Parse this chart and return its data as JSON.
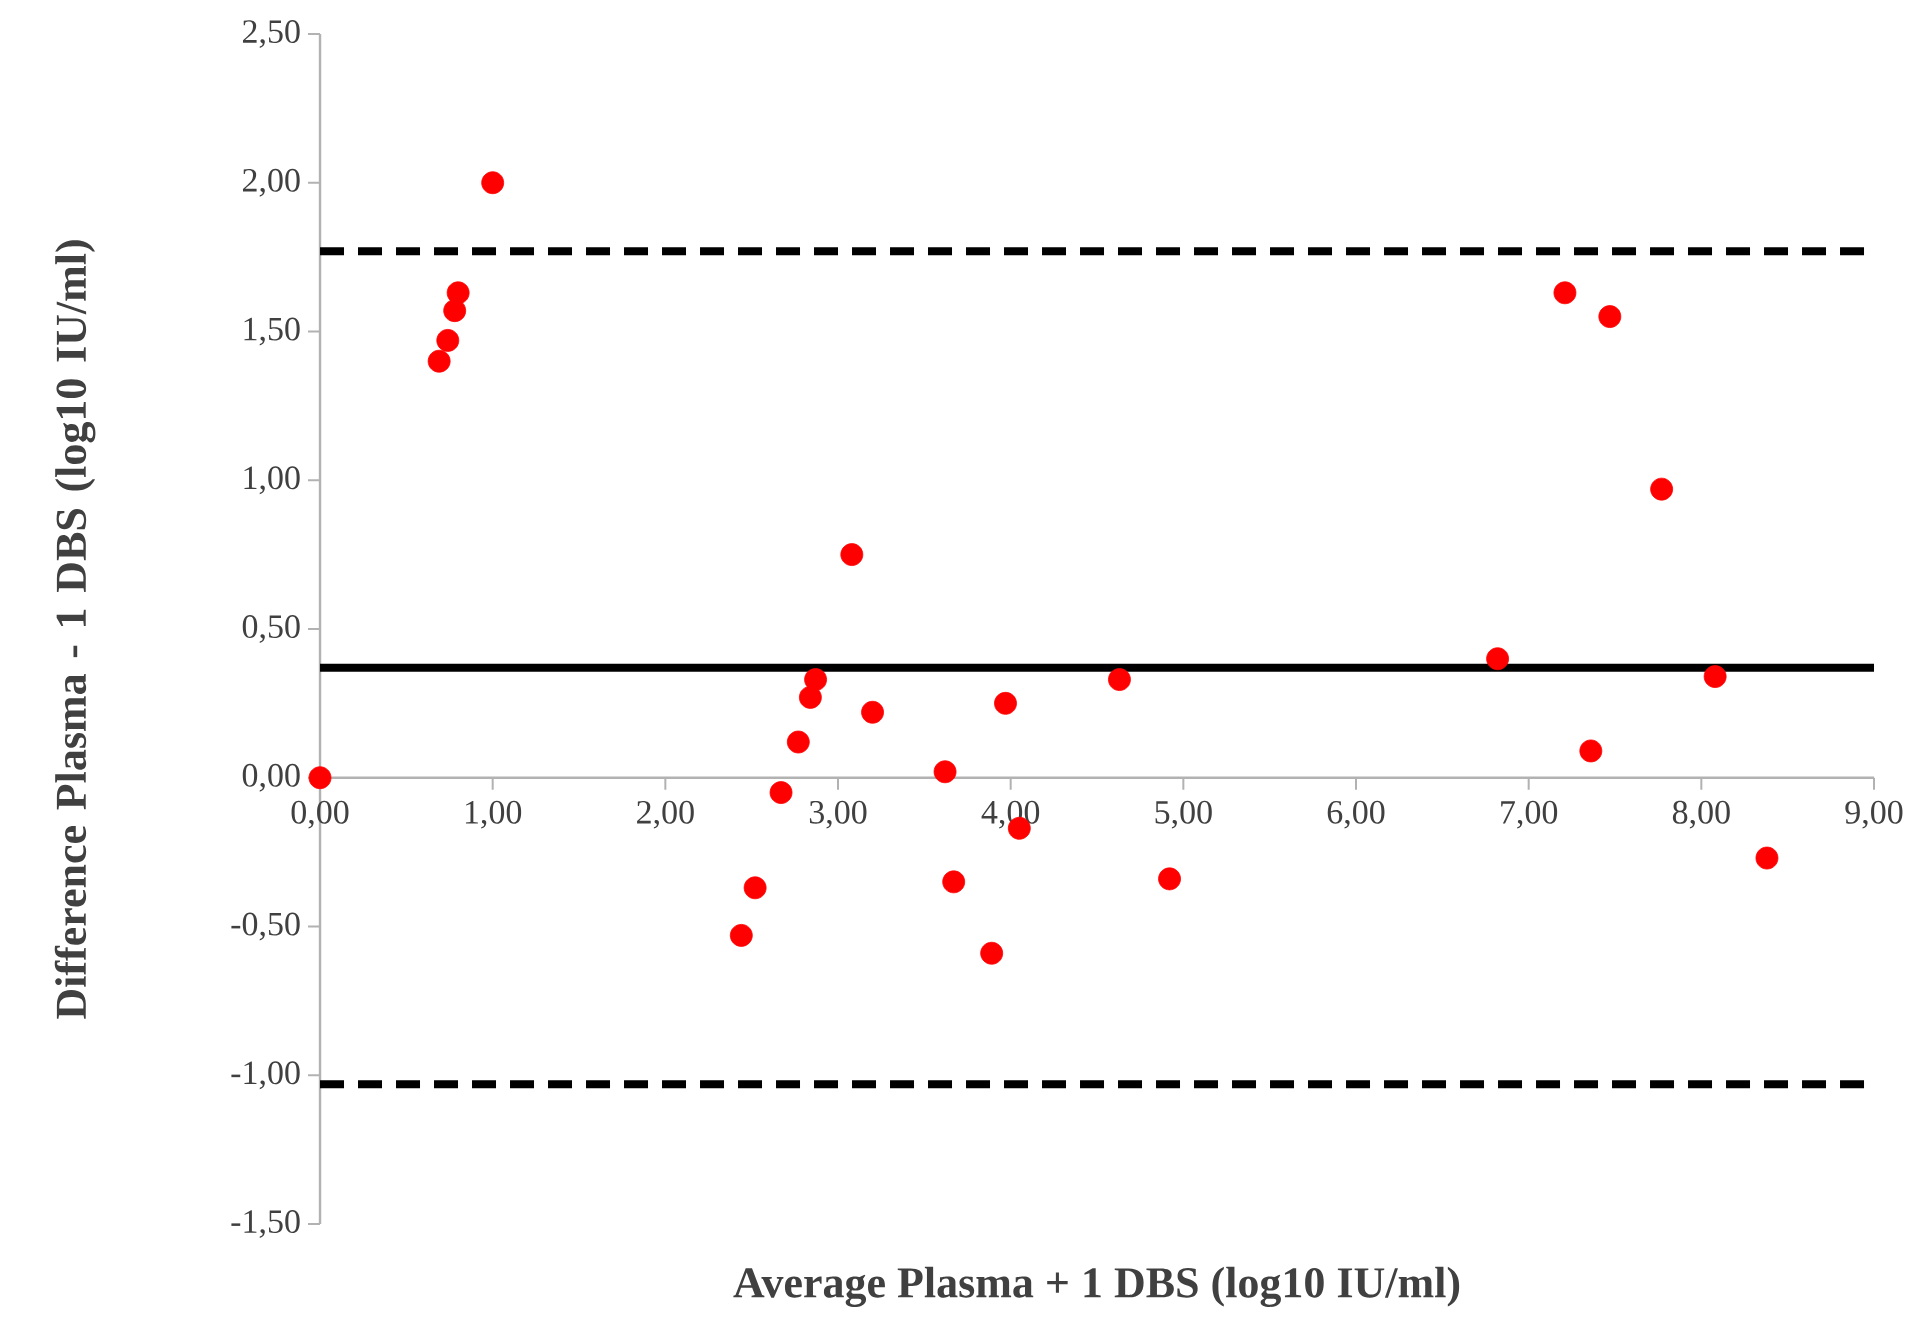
{
  "chart_data": {
    "type": "scatter",
    "xlabel": "Average Plasma + 1 DBS (log10 IU/ml)",
    "ylabel": "Difference Plasma - 1 DBS (log10 IU/ml)",
    "xlim": [
      0,
      9
    ],
    "ylim": [
      -1.5,
      2.5
    ],
    "xticks": [
      {
        "value": 0,
        "label": "0,00"
      },
      {
        "value": 1,
        "label": "1,00"
      },
      {
        "value": 2,
        "label": "2,00"
      },
      {
        "value": 3,
        "label": "3,00"
      },
      {
        "value": 4,
        "label": "4,00"
      },
      {
        "value": 5,
        "label": "5,00"
      },
      {
        "value": 6,
        "label": "6,00"
      },
      {
        "value": 7,
        "label": "7,00"
      },
      {
        "value": 8,
        "label": "8,00"
      },
      {
        "value": 9,
        "label": "9,00"
      }
    ],
    "yticks": [
      {
        "value": -1.5,
        "label": "-1,50"
      },
      {
        "value": -1,
        "label": "-1,00"
      },
      {
        "value": -0.5,
        "label": "-0,50"
      },
      {
        "value": 0,
        "label": "0,00"
      },
      {
        "value": 0.5,
        "label": "0,50"
      },
      {
        "value": 1,
        "label": "1,00"
      },
      {
        "value": 1.5,
        "label": "1,50"
      },
      {
        "value": 2,
        "label": "2,00"
      },
      {
        "value": 2.5,
        "label": "2,50"
      }
    ],
    "marker": "circle",
    "grid": false,
    "series": [
      {
        "color": "#ff0000",
        "x": [
          0,
          1.0,
          0.8,
          0.78,
          0.74,
          0.69,
          3.08,
          2.87,
          2.84,
          3.2,
          2.77,
          2.67,
          3.62,
          3.97,
          4.63,
          4.05,
          2.52,
          2.44,
          3.67,
          3.89,
          4.92,
          7.21,
          7.47,
          7.77,
          6.82,
          8.08,
          7.36,
          8.38
        ],
        "values": [
          0,
          2.0,
          1.63,
          1.57,
          1.47,
          1.4,
          0.75,
          0.33,
          0.27,
          0.22,
          0.12,
          -0.05,
          0.02,
          0.25,
          0.33,
          -0.17,
          -0.37,
          -0.53,
          -0.35,
          -0.59,
          -0.34,
          1.63,
          1.55,
          0.97,
          0.4,
          0.34,
          0.09,
          -0.27
        ]
      }
    ],
    "ref_lines": [
      {
        "axis": "y",
        "value": 1.77,
        "color": "#000000",
        "line_style": "dashed"
      },
      {
        "axis": "y",
        "value": 0.37,
        "color": "#000000",
        "line_style": "solid"
      },
      {
        "axis": "y",
        "value": -1.03,
        "color": "#000000",
        "line_style": "dashed"
      }
    ]
  }
}
